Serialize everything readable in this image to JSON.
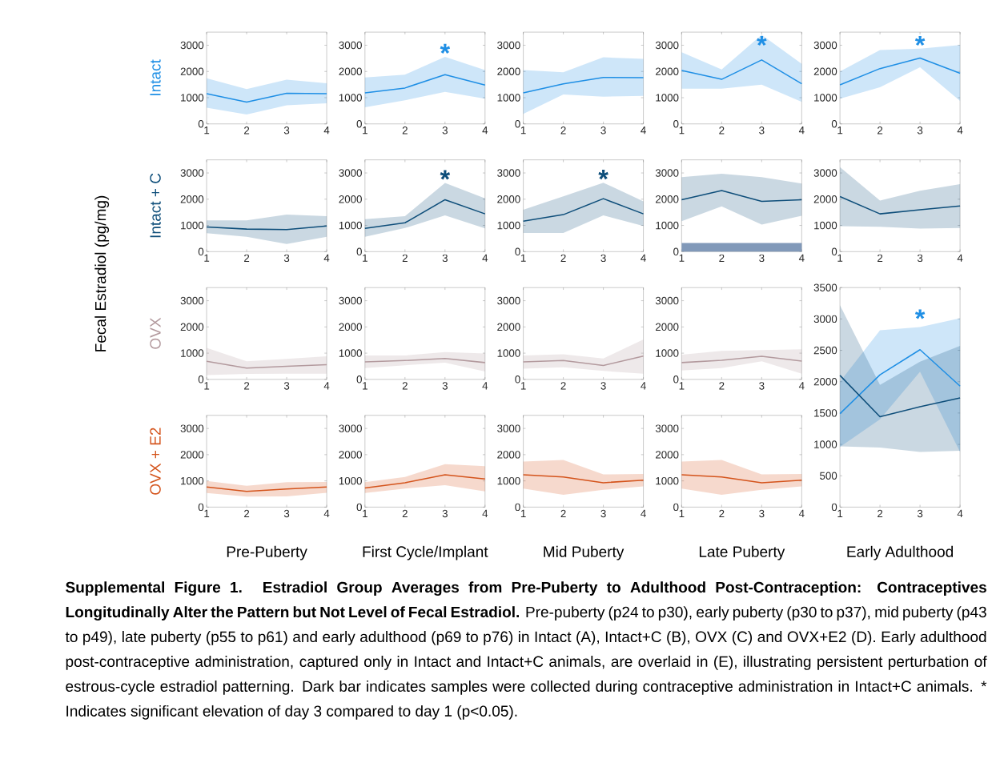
{
  "chart_data": [
    {
      "type": "line",
      "ylabel": "Intact",
      "x": [
        1,
        2,
        3,
        4
      ],
      "xlim": [
        1,
        4
      ],
      "xticks": [
        1,
        2,
        3,
        4
      ],
      "ylim": [
        0,
        3500
      ],
      "yticks": [
        0,
        1000,
        2000,
        3000
      ],
      "annotations": [
        "Fecal Estradiol (pg/mg)",
        "**Supplemental Figure 1. Estradiol Group Averages from Pre-Puberty to Adulthood Post-Contraception: Contraceptives Longitudinally Alter the Pattern but Not Level of Fecal Estradiol.** Pre-puberty (p24 to p30), early puberty (p30 to p37), mid puberty (p43 to p49), late puberty (p55 to p61) and early adulthood (p69 to p76) in Intact (A), Intact+C (B), OVX (C) and OVX+E2 (D). Early adulthood post-contraceptive administration, captured only in Intact and Intact+C animals, are overlaid in (E), illustrating persistent perturbation of estrous-cycle estradiol patterning. Dark bar indicates samples were collected during contraceptive administration in Intact+C animals. * Indicates significant elevation of day 3 compared to day 1 (p<0.05)."
      ],
      "series": [
        {
          "color": "#1f8fe5",
          "values": [
            1150,
            830,
            1170,
            1150
          ],
          "upper": [
            1740,
            1330,
            1690,
            1550
          ],
          "lower": [
            620,
            360,
            710,
            790
          ]
        }
      ]
    },
    {
      "type": "line",
      "x": [
        1,
        2,
        3,
        4
      ],
      "xlim": [
        1,
        4
      ],
      "xticks": [
        1,
        2,
        3,
        4
      ],
      "ylim": [
        0,
        3500
      ],
      "yticks": [
        0,
        1000,
        2000,
        3000
      ],
      "annotations": [
        "*"
      ],
      "series": [
        {
          "color": "#1f8fe5",
          "values": [
            1180,
            1370,
            1880,
            1480
          ],
          "upper": [
            1770,
            1880,
            2560,
            2050
          ],
          "lower": [
            630,
            900,
            1220,
            960
          ]
        }
      ]
    },
    {
      "type": "line",
      "x": [
        1,
        2,
        3,
        4
      ],
      "xlim": [
        1,
        4
      ],
      "xticks": [
        1,
        2,
        3,
        4
      ],
      "ylim": [
        0,
        3500
      ],
      "yticks": [
        0,
        1000,
        2000,
        3000
      ],
      "series": [
        {
          "color": "#1f8fe5",
          "values": [
            1180,
            1530,
            1770,
            1760
          ],
          "upper": [
            2050,
            1970,
            2540,
            2480
          ],
          "lower": [
            380,
            1120,
            1040,
            1070
          ]
        }
      ]
    },
    {
      "type": "line",
      "x": [
        1,
        2,
        3,
        4
      ],
      "xlim": [
        1,
        4
      ],
      "xticks": [
        1,
        2,
        3,
        4
      ],
      "ylim": [
        0,
        3500
      ],
      "yticks": [
        0,
        1000,
        2000,
        3000
      ],
      "annotations": [
        "*"
      ],
      "series": [
        {
          "color": "#1f8fe5",
          "values": [
            2040,
            1700,
            2440,
            1530
          ],
          "upper": [
            2730,
            2080,
            3400,
            2290
          ],
          "lower": [
            1340,
            1340,
            1500,
            840
          ]
        }
      ]
    },
    {
      "type": "line",
      "x": [
        1,
        2,
        3,
        4
      ],
      "xlim": [
        1,
        4
      ],
      "xticks": [
        1,
        2,
        3,
        4
      ],
      "ylim": [
        0,
        3500
      ],
      "yticks": [
        0,
        1000,
        2000,
        3000
      ],
      "annotations": [
        "*"
      ],
      "series": [
        {
          "color": "#1f8fe5",
          "values": [
            1490,
            2110,
            2510,
            1930
          ],
          "upper": [
            2000,
            2820,
            2870,
            3010
          ],
          "lower": [
            960,
            1400,
            2160,
            880
          ]
        }
      ]
    },
    {
      "type": "line",
      "ylabel": "Intact + C",
      "x": [
        1,
        2,
        3,
        4
      ],
      "xlim": [
        1,
        4
      ],
      "xticks": [
        1,
        2,
        3,
        4
      ],
      "ylim": [
        0,
        3500
      ],
      "yticks": [
        0,
        1000,
        2000,
        3000
      ],
      "series": [
        {
          "color": "#0e4e7a",
          "values": [
            940,
            860,
            840,
            980
          ],
          "upper": [
            1190,
            1190,
            1410,
            1350
          ],
          "lower": [
            700,
            570,
            290,
            570
          ]
        }
      ]
    },
    {
      "type": "line",
      "x": [
        1,
        2,
        3,
        4
      ],
      "xlim": [
        1,
        4
      ],
      "xticks": [
        1,
        2,
        3,
        4
      ],
      "ylim": [
        0,
        3500
      ],
      "yticks": [
        0,
        1000,
        2000,
        3000
      ],
      "annotations": [
        "*"
      ],
      "series": [
        {
          "color": "#0e4e7a",
          "values": [
            890,
            1100,
            1980,
            1440
          ],
          "upper": [
            1240,
            1350,
            2620,
            2030
          ],
          "lower": [
            570,
            900,
            1380,
            890
          ]
        }
      ]
    },
    {
      "type": "line",
      "x": [
        1,
        2,
        3,
        4
      ],
      "xlim": [
        1,
        4
      ],
      "xticks": [
        1,
        2,
        3,
        4
      ],
      "ylim": [
        0,
        3500
      ],
      "yticks": [
        0,
        1000,
        2000,
        3000
      ],
      "annotations": [
        "*"
      ],
      "series": [
        {
          "color": "#0e4e7a",
          "values": [
            1160,
            1410,
            2020,
            1440
          ],
          "upper": [
            1600,
            2110,
            2630,
            1920
          ],
          "lower": [
            710,
            710,
            1380,
            980
          ]
        }
      ]
    },
    {
      "type": "line",
      "x": [
        1,
        2,
        3,
        4
      ],
      "xlim": [
        1,
        4
      ],
      "xticks": [
        1,
        2,
        3,
        4
      ],
      "ylim": [
        0,
        3500
      ],
      "yticks": [
        0,
        1000,
        2000,
        3000
      ],
      "bands": [
        {
          "axis": "y",
          "from": 0,
          "to": 330,
          "color": "#8199b9"
        }
      ],
      "series": [
        {
          "color": "#0e4e7a",
          "values": [
            1980,
            2330,
            1920,
            1980
          ],
          "upper": [
            2840,
            2970,
            2840,
            2600
          ],
          "lower": [
            1160,
            1730,
            1030,
            1370
          ]
        }
      ]
    },
    {
      "type": "line",
      "x": [
        1,
        2,
        3,
        4
      ],
      "xlim": [
        1,
        4
      ],
      "xticks": [
        1,
        2,
        3,
        4
      ],
      "ylim": [
        0,
        3500
      ],
      "yticks": [
        0,
        1000,
        2000,
        3000
      ],
      "series": [
        {
          "color": "#0e4e7a",
          "values": [
            2100,
            1440,
            1600,
            1740
          ],
          "upper": [
            3220,
            1950,
            2320,
            2570
          ],
          "lower": [
            970,
            950,
            880,
            900
          ]
        }
      ]
    },
    {
      "type": "line",
      "ylabel": "OVX",
      "x": [
        1,
        2,
        3,
        4
      ],
      "xlim": [
        1,
        4
      ],
      "xticks": [
        1,
        2,
        3,
        4
      ],
      "ylim": [
        0,
        3500
      ],
      "yticks": [
        0,
        1000,
        2000,
        3000
      ],
      "series": [
        {
          "color": "#b39a9e",
          "values": [
            690,
            430,
            500,
            560
          ],
          "upper": [
            1200,
            690,
            780,
            880
          ],
          "lower": [
            160,
            210,
            220,
            220
          ]
        }
      ]
    },
    {
      "type": "line",
      "x": [
        1,
        2,
        3,
        4
      ],
      "xlim": [
        1,
        4
      ],
      "xticks": [
        1,
        2,
        3,
        4
      ],
      "ylim": [
        0,
        3500
      ],
      "yticks": [
        0,
        1000,
        2000,
        3000
      ],
      "series": [
        {
          "color": "#b39a9e",
          "values": [
            670,
            720,
            800,
            640
          ],
          "upper": [
            910,
            910,
            1040,
            990
          ],
          "lower": [
            430,
            540,
            640,
            300
          ]
        }
      ]
    },
    {
      "type": "line",
      "x": [
        1,
        2,
        3,
        4
      ],
      "xlim": [
        1,
        4
      ],
      "xticks": [
        1,
        2,
        3,
        4
      ],
      "ylim": [
        0,
        3500
      ],
      "yticks": [
        0,
        1000,
        2000,
        3000
      ],
      "series": [
        {
          "color": "#b39a9e",
          "values": [
            670,
            720,
            530,
            890
          ],
          "upper": [
            910,
            960,
            800,
            1520
          ],
          "lower": [
            410,
            460,
            320,
            220
          ]
        }
      ]
    },
    {
      "type": "line",
      "x": [
        1,
        2,
        3,
        4
      ],
      "xlim": [
        1,
        4
      ],
      "xticks": [
        1,
        2,
        3,
        4
      ],
      "ylim": [
        0,
        3500
      ],
      "yticks": [
        0,
        1000,
        2000,
        3000
      ],
      "series": [
        {
          "color": "#b39a9e",
          "values": [
            640,
            730,
            880,
            700
          ],
          "upper": [
            940,
            1090,
            1120,
            1150
          ],
          "lower": [
            340,
            430,
            690,
            220
          ]
        }
      ]
    },
    {
      "type": "line",
      "xlabel": "Early Adulthood",
      "x": [
        1,
        2,
        3,
        4
      ],
      "xlim": [
        1,
        4
      ],
      "xticks": [
        1,
        2,
        3,
        4
      ],
      "ylim": [
        0,
        3500
      ],
      "yticks": [
        0,
        500,
        1000,
        1500,
        2000,
        2500,
        3000,
        3500
      ],
      "annotations": [
        "*"
      ],
      "series": [
        {
          "color": "#1f8fe5",
          "values": [
            1490,
            2110,
            2510,
            1930
          ],
          "upper": [
            2000,
            2820,
            2870,
            3010
          ],
          "lower": [
            960,
            1400,
            2160,
            880
          ]
        },
        {
          "color": "#0e4e7a",
          "values": [
            2100,
            1440,
            1600,
            1740
          ],
          "upper": [
            3220,
            1950,
            2320,
            2570
          ],
          "lower": [
            970,
            950,
            880,
            900
          ]
        }
      ]
    },
    {
      "type": "line",
      "ylabel": "OVX + E2",
      "xlabel": "Pre-Puberty",
      "x": [
        1,
        2,
        3,
        4
      ],
      "xlim": [
        1,
        4
      ],
      "xticks": [
        1,
        2,
        3,
        4
      ],
      "ylim": [
        0,
        3500
      ],
      "yticks": [
        0,
        1000,
        2000,
        3000
      ],
      "series": [
        {
          "color": "#d4541c",
          "values": [
            770,
            600,
            690,
            770
          ],
          "upper": [
            1000,
            810,
            950,
            960
          ],
          "lower": [
            540,
            400,
            410,
            550
          ]
        }
      ]
    },
    {
      "type": "line",
      "xlabel": "First Cycle/Implant",
      "x": [
        1,
        2,
        3,
        4
      ],
      "xlim": [
        1,
        4
      ],
      "xticks": [
        1,
        2,
        3,
        4
      ],
      "ylim": [
        0,
        3500
      ],
      "yticks": [
        0,
        1000,
        2000,
        3000
      ],
      "series": [
        {
          "color": "#d4541c",
          "values": [
            730,
            930,
            1230,
            1070
          ],
          "upper": [
            950,
            1150,
            1640,
            1560
          ],
          "lower": [
            540,
            710,
            840,
            600
          ]
        }
      ]
    },
    {
      "type": "line",
      "xlabel": "Mid Puberty",
      "x": [
        1,
        2,
        3,
        4
      ],
      "xlim": [
        1,
        4
      ],
      "xticks": [
        1,
        2,
        3,
        4
      ],
      "ylim": [
        0,
        3500
      ],
      "yticks": [
        0,
        1000,
        2000,
        3000
      ],
      "series": [
        {
          "color": "#d4541c",
          "values": [
            1230,
            1150,
            930,
            1030
          ],
          "upper": [
            1740,
            1800,
            1250,
            1260
          ],
          "lower": [
            710,
            470,
            660,
            790
          ]
        }
      ]
    },
    {
      "type": "line",
      "xlabel": "Late Puberty",
      "x": [
        1,
        2,
        3,
        4
      ],
      "xlim": [
        1,
        4
      ],
      "xticks": [
        1,
        2,
        3,
        4
      ],
      "ylim": [
        0,
        3500
      ],
      "yticks": [
        0,
        1000,
        2000,
        3000
      ],
      "series": [
        {
          "color": "#d4541c",
          "values": [
            1230,
            1150,
            930,
            1030
          ],
          "upper": [
            1740,
            1800,
            1250,
            1260
          ],
          "lower": [
            710,
            470,
            660,
            790
          ]
        }
      ]
    }
  ]
}
